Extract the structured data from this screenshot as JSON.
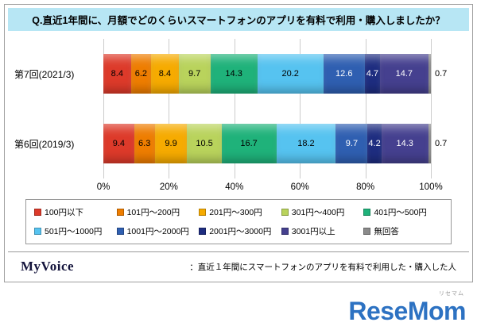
{
  "title": "Q.直近1年間に、月額でどのくらいスマートフォンのアプリを有料で利用・購入しましたか？",
  "chart_data": {
    "type": "bar",
    "orientation": "horizontal",
    "stacked": true,
    "categories": [
      "第7回(2021/3)",
      "第6回(2019/3)"
    ],
    "series": [
      {
        "name": "100円以下",
        "color": "#dd3a2a",
        "label_color": "#000000",
        "values": [
          8.4,
          9.4
        ]
      },
      {
        "name": "101円～200円",
        "color": "#ee7d00",
        "label_color": "#000000",
        "values": [
          6.2,
          6.3
        ]
      },
      {
        "name": "201円～300円",
        "color": "#f6ab00",
        "label_color": "#000000",
        "values": [
          8.4,
          9.9
        ]
      },
      {
        "name": "301円～400円",
        "color": "#b9d35c",
        "label_color": "#000000",
        "values": [
          9.7,
          10.5
        ]
      },
      {
        "name": "401円～500円",
        "color": "#1fb27a",
        "label_color": "#000000",
        "values": [
          14.3,
          16.7
        ]
      },
      {
        "name": "501円～1000円",
        "color": "#56c3f0",
        "label_color": "#000000",
        "values": [
          20.2,
          18.2
        ]
      },
      {
        "name": "1001円～2000円",
        "color": "#2f5fb1",
        "label_color": "#ffffff",
        "values": [
          12.6,
          9.7
        ]
      },
      {
        "name": "2001円～3000円",
        "color": "#1e2d80",
        "label_color": "#ffffff",
        "values": [
          4.7,
          4.2
        ]
      },
      {
        "name": "3001円以上",
        "color": "#45408f",
        "label_color": "#ffffff",
        "values": [
          14.7,
          14.3
        ]
      },
      {
        "name": "無回答",
        "color": "#8a8a8a",
        "label_color": "#000000",
        "values": [
          0.7,
          0.7
        ]
      }
    ],
    "x_ticks": [
      "0%",
      "20%",
      "40%",
      "60%",
      "80%",
      "100%"
    ],
    "xlim": [
      0,
      100
    ],
    "outside_labels": [
      "0.7",
      "0.7"
    ],
    "legend_position": "bottom",
    "grid": true,
    "label_min_value": 1.5
  },
  "footer": {
    "logo": "MyVoice",
    "note": "：直近１年間にスマートフォンのアプリを有料で利用した・購入した人"
  },
  "brand": {
    "name": "ReseMom",
    "ruby": "リセマム"
  }
}
